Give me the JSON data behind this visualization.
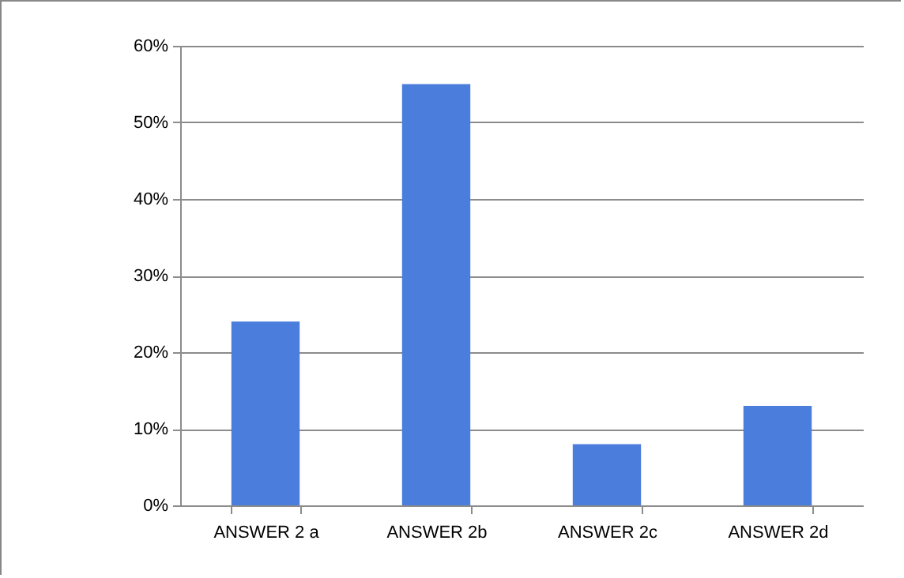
{
  "chart_data": {
    "type": "bar",
    "categories": [
      "ANSWER 2 a",
      "ANSWER 2b",
      "ANSWER 2c",
      "ANSWER 2d"
    ],
    "values": [
      24,
      55,
      8,
      13
    ],
    "color": "#4a7ddc",
    "ylim": [
      0,
      60
    ],
    "yticks": [
      {
        "value": 0,
        "label": "0%"
      },
      {
        "value": 10,
        "label": "10%"
      },
      {
        "value": 20,
        "label": "20%"
      },
      {
        "value": 30,
        "label": "30%"
      },
      {
        "value": 40,
        "label": "40%"
      },
      {
        "value": 50,
        "label": "50%"
      },
      {
        "value": 60,
        "label": "60%"
      }
    ],
    "grid": "y"
  }
}
